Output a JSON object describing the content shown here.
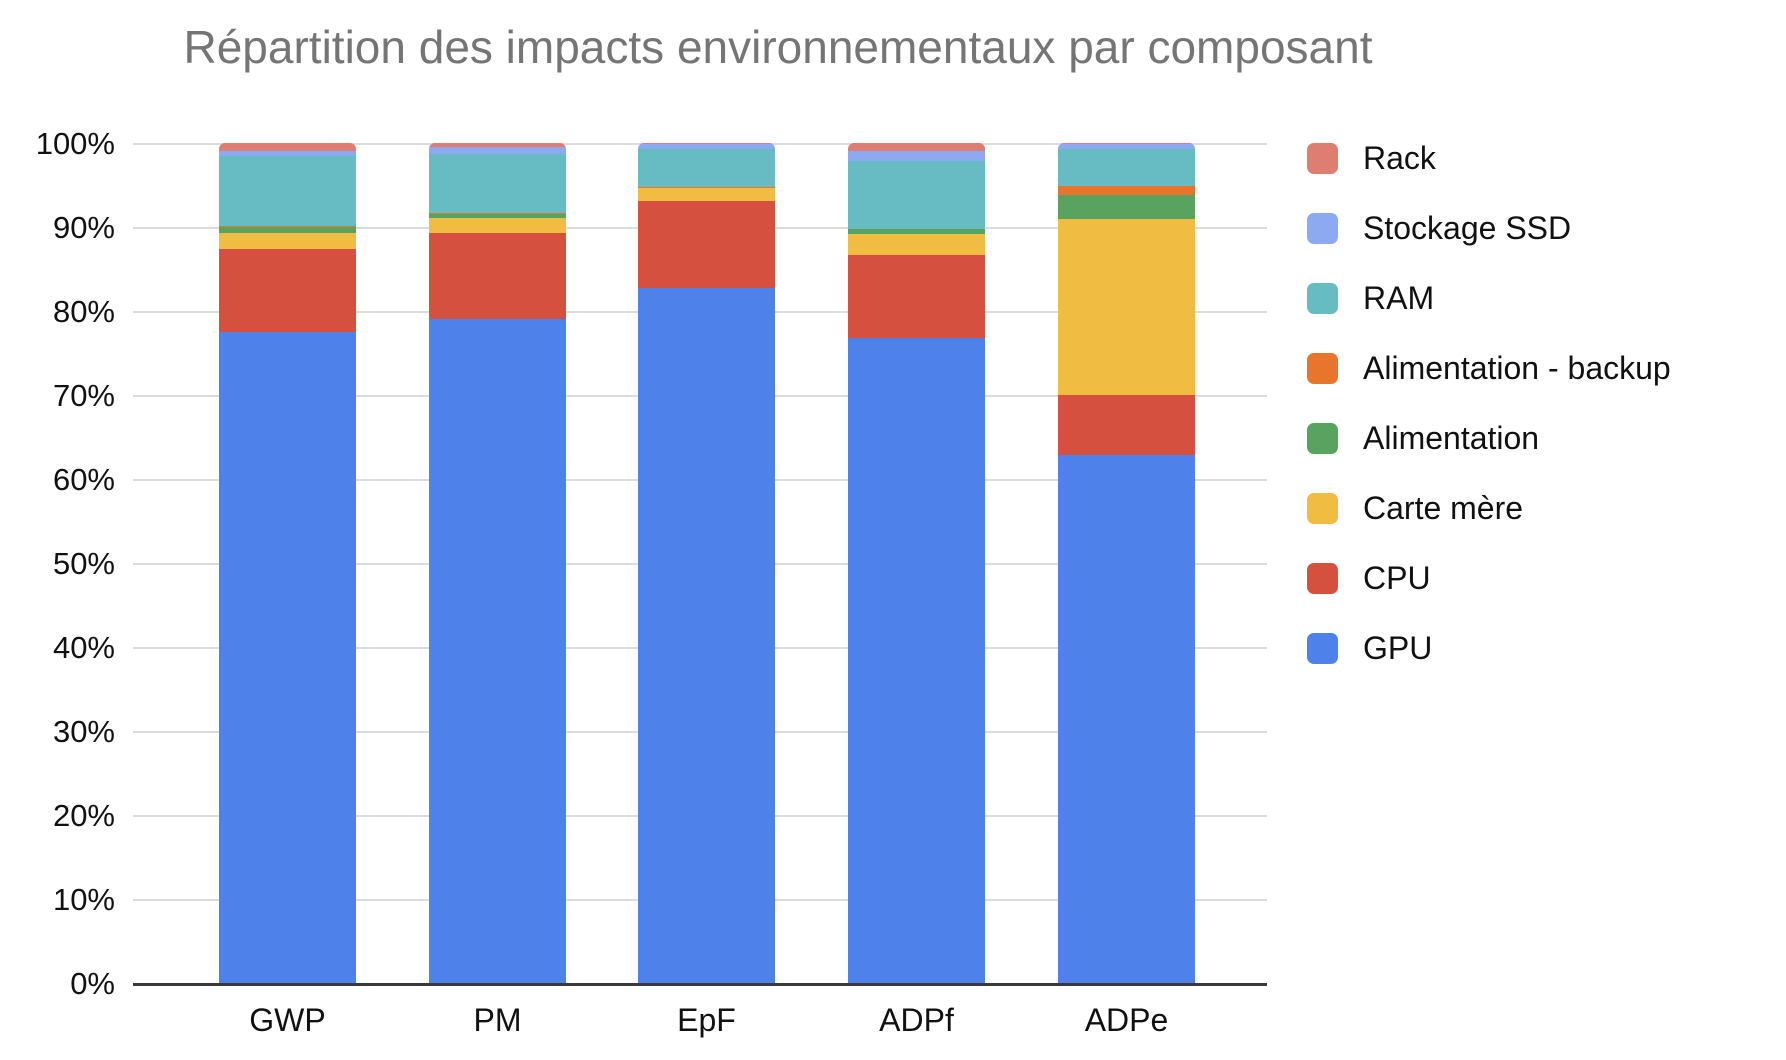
{
  "chart_data": {
    "type": "bar",
    "stacked": true,
    "percent_stacked": true,
    "title": "Répartition des impacts environnementaux par composant",
    "title_color": "#757575",
    "categories": [
      "GWP",
      "PM",
      "EpF",
      "ADPf",
      "ADPe"
    ],
    "series": [
      {
        "name": "GPU",
        "color": "#4E81EA",
        "values": [
          77.5,
          79.0,
          82.7,
          76.8,
          62.9
        ]
      },
      {
        "name": "CPU",
        "color": "#D5503F",
        "values": [
          9.9,
          10.3,
          10.4,
          9.9,
          7.1
        ]
      },
      {
        "name": "Carte mère",
        "color": "#F0BC42",
        "values": [
          1.9,
          1.8,
          1.5,
          2.5,
          21.0
        ]
      },
      {
        "name": "Alimentation",
        "color": "#58A35F",
        "values": [
          0.7,
          0.5,
          0.0,
          0.5,
          2.8
        ]
      },
      {
        "name": "Alimentation - backup",
        "color": "#E8752C",
        "values": [
          0.1,
          0.1,
          0.1,
          0.1,
          1.1
        ]
      },
      {
        "name": "RAM",
        "color": "#66BCC2",
        "values": [
          8.3,
          7.0,
          4.6,
          8.0,
          4.4
        ]
      },
      {
        "name": "Stockage SSD",
        "color": "#8CA9F1",
        "values": [
          0.7,
          0.8,
          0.6,
          1.2,
          0.6
        ]
      },
      {
        "name": "Rack",
        "color": "#DE7E72",
        "values": [
          0.9,
          0.5,
          0.1,
          1.0,
          0.1
        ]
      }
    ],
    "legend_order": [
      "Rack",
      "Stockage SSD",
      "RAM",
      "Alimentation - backup",
      "Alimentation",
      "Carte mère",
      "CPU",
      "GPU"
    ],
    "legend_position": "right",
    "xlabel": "",
    "ylabel": "",
    "ylim": [
      0,
      100
    ],
    "yticks": [
      "0%",
      "10%",
      "20%",
      "30%",
      "40%",
      "50%",
      "60%",
      "70%",
      "80%",
      "90%",
      "100%"
    ],
    "grid": "horizontal",
    "gridline_color": "#dcdcdc",
    "axis_line_color": "#3a3a3a"
  }
}
